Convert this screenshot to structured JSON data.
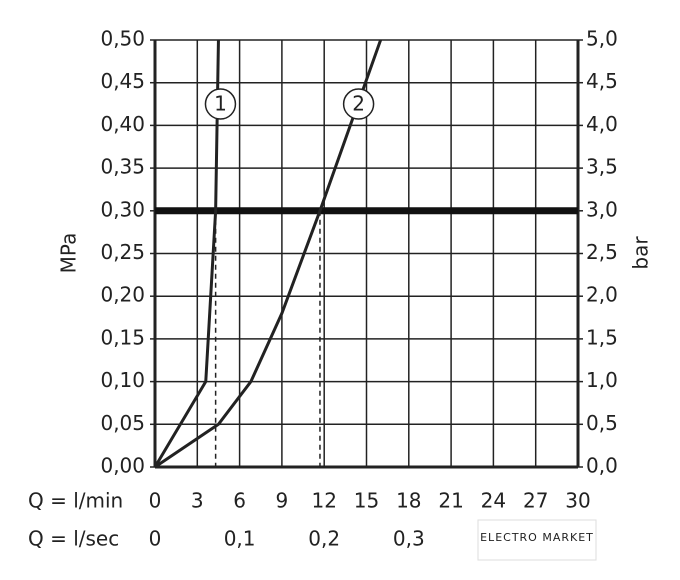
{
  "chart_data": {
    "type": "line",
    "xlabel": "Q = l/min",
    "x2label": "Q = l/sec",
    "ylabel": "MPa",
    "y2label": "bar",
    "xlim": [
      0,
      30
    ],
    "xticks": [
      0,
      3,
      6,
      9,
      12,
      15,
      18,
      21,
      24,
      27,
      30
    ],
    "x2lim": [
      0,
      0.5
    ],
    "x2ticks": [
      0,
      {
        "value": 0.1,
        "label": "0,1"
      },
      {
        "value": 0.2,
        "label": "0,2"
      },
      {
        "value": 0.3,
        "label": "0,3"
      }
    ],
    "ylim": [
      0,
      0.5
    ],
    "yticks": [
      {
        "value": 0,
        "label": "0,00"
      },
      {
        "value": 0.05,
        "label": "0,05"
      },
      {
        "value": 0.1,
        "label": "0,10"
      },
      {
        "value": 0.15,
        "label": "0,15"
      },
      {
        "value": 0.2,
        "label": "0,20"
      },
      {
        "value": 0.25,
        "label": "0,25"
      },
      {
        "value": 0.3,
        "label": "0,30"
      },
      {
        "value": 0.35,
        "label": "0,35"
      },
      {
        "value": 0.4,
        "label": "0,40"
      },
      {
        "value": 0.45,
        "label": "0,45"
      },
      {
        "value": 0.5,
        "label": "0,50"
      }
    ],
    "y2lim": [
      0,
      5
    ],
    "y2ticks": [
      {
        "value": 0,
        "label": "0,0"
      },
      {
        "value": 0.5,
        "label": "0,5"
      },
      {
        "value": 1,
        "label": "1,0"
      },
      {
        "value": 1.5,
        "label": "1,5"
      },
      {
        "value": 2,
        "label": "2,0"
      },
      {
        "value": 2.5,
        "label": "2,5"
      },
      {
        "value": 3,
        "label": "3,0"
      },
      {
        "value": 3.5,
        "label": "3,5"
      },
      {
        "value": 4,
        "label": "4,0"
      },
      {
        "value": 4.5,
        "label": "4,5"
      },
      {
        "value": 5,
        "label": "5,0"
      }
    ],
    "grid": true,
    "reference_line": 0.3,
    "series": [
      {
        "name": "1",
        "color": "#222222",
        "x": [
          0,
          3.6,
          4.3,
          4.5
        ],
        "values": [
          0,
          0.1,
          0.3,
          0.5
        ]
      },
      {
        "name": "2",
        "color": "#222222",
        "x": [
          0,
          4.5,
          6.8,
          9,
          11.7,
          16
        ],
        "values": [
          0,
          0.05,
          0.1,
          0.18,
          0.3,
          0.5
        ]
      }
    ],
    "watermark": "ELECTRO MARKET"
  }
}
